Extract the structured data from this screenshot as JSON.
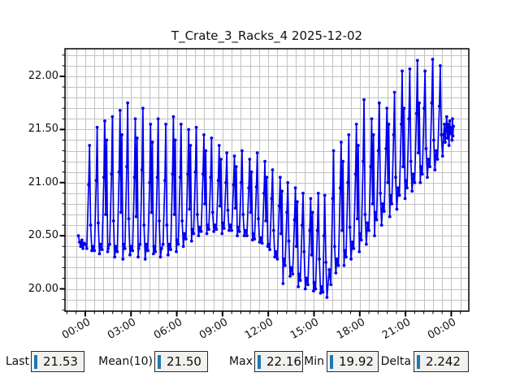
{
  "chart_data": {
    "type": "line",
    "title": "T_Crate_3_Racks_4 2025-12-02",
    "series_name": "T_Crate_3_Racks_4",
    "line_color": "#0000ee",
    "marker": "circle",
    "grid": true,
    "grid_color": "#c2c2c2",
    "frame_color": "#000000",
    "x_unit": "time (hours of 2025-12-02)",
    "xlim": [
      -1.33,
      25.15
    ],
    "ylim": [
      19.79,
      22.26
    ],
    "x_major_ticks": [
      0,
      3,
      6,
      9,
      12,
      15,
      18,
      21,
      24
    ],
    "x_tick_labels": [
      "00:00",
      "03:00",
      "06:00",
      "09:00",
      "12:00",
      "15:00",
      "18:00",
      "21:00",
      "00:00"
    ],
    "x_minor_step": 0.6,
    "y_major_ticks": [
      20.0,
      20.5,
      21.0,
      21.5,
      22.0
    ],
    "y_tick_labels": [
      "20.00",
      "20.50",
      "21.00",
      "21.50",
      "22.00"
    ],
    "y_minor_step": 0.1,
    "points": [
      [
        -0.45,
        20.5
      ],
      [
        -0.38,
        20.44
      ],
      [
        -0.3,
        20.4
      ],
      [
        -0.22,
        20.46
      ],
      [
        -0.15,
        20.38
      ],
      [
        -0.08,
        20.43
      ],
      [
        0.0,
        20.42
      ],
      [
        0.1,
        20.38
      ],
      [
        0.22,
        20.98
      ],
      [
        0.28,
        21.35
      ],
      [
        0.35,
        20.6
      ],
      [
        0.43,
        20.36
      ],
      [
        0.5,
        20.4
      ],
      [
        0.6,
        20.36
      ],
      [
        0.72,
        21.02
      ],
      [
        0.78,
        21.52
      ],
      [
        0.85,
        20.62
      ],
      [
        0.93,
        20.33
      ],
      [
        1.0,
        20.42
      ],
      [
        1.1,
        20.37
      ],
      [
        1.22,
        21.05
      ],
      [
        1.28,
        21.58
      ],
      [
        1.34,
        20.7
      ],
      [
        1.4,
        21.4
      ],
      [
        1.47,
        20.35
      ],
      [
        1.5,
        20.38
      ],
      [
        1.6,
        20.42
      ],
      [
        1.72,
        21.08
      ],
      [
        1.78,
        21.62
      ],
      [
        1.85,
        20.64
      ],
      [
        1.93,
        20.3
      ],
      [
        2.0,
        20.4
      ],
      [
        2.1,
        20.35
      ],
      [
        2.22,
        21.1
      ],
      [
        2.28,
        21.68
      ],
      [
        2.34,
        20.72
      ],
      [
        2.4,
        21.45
      ],
      [
        2.47,
        20.28
      ],
      [
        2.5,
        20.42
      ],
      [
        2.6,
        20.38
      ],
      [
        2.72,
        21.15
      ],
      [
        2.78,
        21.75
      ],
      [
        2.85,
        20.66
      ],
      [
        2.93,
        20.32
      ],
      [
        3.0,
        20.4
      ],
      [
        3.1,
        20.36
      ],
      [
        3.22,
        21.05
      ],
      [
        3.28,
        21.6
      ],
      [
        3.34,
        20.68
      ],
      [
        3.4,
        21.42
      ],
      [
        3.47,
        20.3
      ],
      [
        3.5,
        20.38
      ],
      [
        3.6,
        20.42
      ],
      [
        3.72,
        21.12
      ],
      [
        3.78,
        21.7
      ],
      [
        3.85,
        20.6
      ],
      [
        3.93,
        20.28
      ],
      [
        4.0,
        20.42
      ],
      [
        4.1,
        20.36
      ],
      [
        4.22,
        21.0
      ],
      [
        4.28,
        21.55
      ],
      [
        4.34,
        20.72
      ],
      [
        4.4,
        21.38
      ],
      [
        4.47,
        20.33
      ],
      [
        4.5,
        20.4
      ],
      [
        4.6,
        20.35
      ],
      [
        4.72,
        21.05
      ],
      [
        4.78,
        21.6
      ],
      [
        4.85,
        20.64
      ],
      [
        4.93,
        20.3
      ],
      [
        5.0,
        20.38
      ],
      [
        5.1,
        20.42
      ],
      [
        5.22,
        21.02
      ],
      [
        5.28,
        21.55
      ],
      [
        5.35,
        20.6
      ],
      [
        5.43,
        20.32
      ],
      [
        5.5,
        20.42
      ],
      [
        5.6,
        20.37
      ],
      [
        5.72,
        21.08
      ],
      [
        5.78,
        21.62
      ],
      [
        5.84,
        20.7
      ],
      [
        5.9,
        21.4
      ],
      [
        5.97,
        20.35
      ],
      [
        6.0,
        20.46
      ],
      [
        6.1,
        20.42
      ],
      [
        6.22,
        21.05
      ],
      [
        6.28,
        21.55
      ],
      [
        6.35,
        20.64
      ],
      [
        6.43,
        20.4
      ],
      [
        6.5,
        20.52
      ],
      [
        6.6,
        20.47
      ],
      [
        6.72,
        21.08
      ],
      [
        6.78,
        21.5
      ],
      [
        6.84,
        20.75
      ],
      [
        6.9,
        21.35
      ],
      [
        6.97,
        20.45
      ],
      [
        7.0,
        20.56
      ],
      [
        7.1,
        20.52
      ],
      [
        7.22,
        21.1
      ],
      [
        7.28,
        21.52
      ],
      [
        7.35,
        20.7
      ],
      [
        7.43,
        20.5
      ],
      [
        7.5,
        20.58
      ],
      [
        7.6,
        20.54
      ],
      [
        7.72,
        21.08
      ],
      [
        7.78,
        21.45
      ],
      [
        7.84,
        20.8
      ],
      [
        7.9,
        21.3
      ],
      [
        7.97,
        20.52
      ],
      [
        8.0,
        20.6
      ],
      [
        8.1,
        20.56
      ],
      [
        8.22,
        21.05
      ],
      [
        8.28,
        21.42
      ],
      [
        8.35,
        20.72
      ],
      [
        8.43,
        20.54
      ],
      [
        8.5,
        20.6
      ],
      [
        8.6,
        20.56
      ],
      [
        8.72,
        21.02
      ],
      [
        8.78,
        21.35
      ],
      [
        8.84,
        20.78
      ],
      [
        8.9,
        21.22
      ],
      [
        8.97,
        20.52
      ],
      [
        9.0,
        20.62
      ],
      [
        9.1,
        20.57
      ],
      [
        9.22,
        21.0
      ],
      [
        9.28,
        21.28
      ],
      [
        9.35,
        20.74
      ],
      [
        9.43,
        20.55
      ],
      [
        9.5,
        20.6
      ],
      [
        9.6,
        20.55
      ],
      [
        9.72,
        20.98
      ],
      [
        9.78,
        21.25
      ],
      [
        9.84,
        20.76
      ],
      [
        9.9,
        21.15
      ],
      [
        9.97,
        20.5
      ],
      [
        10.0,
        20.58
      ],
      [
        10.1,
        20.54
      ],
      [
        10.22,
        21.0
      ],
      [
        10.28,
        21.3
      ],
      [
        10.35,
        20.7
      ],
      [
        10.43,
        20.5
      ],
      [
        10.5,
        20.55
      ],
      [
        10.6,
        20.5
      ],
      [
        10.72,
        20.95
      ],
      [
        10.78,
        21.22
      ],
      [
        10.84,
        20.72
      ],
      [
        10.9,
        21.1
      ],
      [
        10.97,
        20.46
      ],
      [
        11.0,
        20.52
      ],
      [
        11.1,
        20.47
      ],
      [
        11.22,
        20.96
      ],
      [
        11.28,
        21.28
      ],
      [
        11.35,
        20.66
      ],
      [
        11.43,
        20.44
      ],
      [
        11.5,
        20.48
      ],
      [
        11.6,
        20.43
      ],
      [
        11.72,
        20.9
      ],
      [
        11.78,
        21.2
      ],
      [
        11.84,
        20.64
      ],
      [
        11.9,
        21.05
      ],
      [
        11.97,
        20.4
      ],
      [
        12.0,
        20.42
      ],
      [
        12.1,
        20.37
      ],
      [
        12.22,
        20.85
      ],
      [
        12.28,
        21.12
      ],
      [
        12.35,
        20.55
      ],
      [
        12.43,
        20.3
      ],
      [
        12.5,
        20.35
      ],
      [
        12.6,
        20.28
      ],
      [
        12.72,
        20.78
      ],
      [
        12.78,
        21.05
      ],
      [
        12.84,
        20.52
      ],
      [
        12.9,
        20.92
      ],
      [
        12.97,
        20.05
      ],
      [
        13.0,
        20.28
      ],
      [
        13.1,
        20.22
      ],
      [
        13.22,
        20.72
      ],
      [
        13.28,
        21.0
      ],
      [
        13.35,
        20.45
      ],
      [
        13.43,
        20.12
      ],
      [
        13.5,
        20.2
      ],
      [
        13.6,
        20.14
      ],
      [
        13.72,
        20.65
      ],
      [
        13.78,
        20.95
      ],
      [
        13.84,
        20.4
      ],
      [
        13.9,
        20.82
      ],
      [
        13.97,
        20.02
      ],
      [
        14.0,
        20.14
      ],
      [
        14.1,
        20.08
      ],
      [
        14.22,
        20.6
      ],
      [
        14.28,
        20.9
      ],
      [
        14.35,
        20.35
      ],
      [
        14.43,
        20.0
      ],
      [
        14.5,
        20.1
      ],
      [
        14.6,
        20.04
      ],
      [
        14.72,
        20.55
      ],
      [
        14.78,
        20.85
      ],
      [
        14.84,
        20.32
      ],
      [
        14.9,
        20.72
      ],
      [
        14.97,
        19.98
      ],
      [
        15.0,
        20.06
      ],
      [
        15.1,
        20.0
      ],
      [
        15.22,
        20.55
      ],
      [
        15.28,
        20.9
      ],
      [
        15.35,
        20.28
      ],
      [
        15.43,
        19.96
      ],
      [
        15.5,
        20.02
      ],
      [
        15.58,
        19.97
      ],
      [
        15.65,
        20.5
      ],
      [
        15.7,
        20.88
      ],
      [
        15.78,
        20.25
      ],
      [
        15.85,
        19.92
      ],
      [
        16.0,
        20.18
      ],
      [
        16.1,
        20.04
      ],
      [
        16.22,
        20.85
      ],
      [
        16.28,
        21.3
      ],
      [
        16.35,
        20.4
      ],
      [
        16.43,
        20.15
      ],
      [
        16.5,
        20.28
      ],
      [
        16.6,
        20.22
      ],
      [
        16.72,
        20.95
      ],
      [
        16.78,
        21.38
      ],
      [
        16.84,
        20.55
      ],
      [
        16.9,
        21.2
      ],
      [
        16.97,
        20.22
      ],
      [
        17.0,
        20.36
      ],
      [
        17.1,
        20.3
      ],
      [
        17.22,
        21.0
      ],
      [
        17.28,
        21.45
      ],
      [
        17.35,
        20.58
      ],
      [
        17.43,
        20.28
      ],
      [
        17.5,
        20.44
      ],
      [
        17.6,
        20.38
      ],
      [
        17.72,
        21.08
      ],
      [
        17.78,
        21.55
      ],
      [
        17.84,
        20.66
      ],
      [
        17.9,
        21.35
      ],
      [
        17.97,
        20.35
      ],
      [
        18.0,
        20.52
      ],
      [
        18.1,
        20.46
      ],
      [
        18.22,
        21.2
      ],
      [
        18.28,
        21.78
      ],
      [
        18.35,
        20.7
      ],
      [
        18.43,
        20.42
      ],
      [
        18.5,
        20.62
      ],
      [
        18.6,
        20.55
      ],
      [
        18.72,
        21.15
      ],
      [
        18.78,
        21.6
      ],
      [
        18.84,
        20.8
      ],
      [
        18.9,
        21.45
      ],
      [
        18.97,
        20.5
      ],
      [
        19.0,
        20.72
      ],
      [
        19.1,
        20.65
      ],
      [
        19.22,
        21.3
      ],
      [
        19.28,
        21.75
      ],
      [
        19.35,
        20.9
      ],
      [
        19.43,
        20.6
      ],
      [
        19.5,
        20.8
      ],
      [
        19.6,
        20.73
      ],
      [
        19.72,
        21.32
      ],
      [
        19.78,
        21.7
      ],
      [
        19.84,
        21.0
      ],
      [
        19.9,
        21.55
      ],
      [
        19.97,
        20.68
      ],
      [
        20.0,
        20.88
      ],
      [
        20.1,
        20.8
      ],
      [
        20.22,
        21.45
      ],
      [
        20.28,
        21.85
      ],
      [
        20.35,
        21.05
      ],
      [
        20.43,
        20.75
      ],
      [
        20.5,
        20.95
      ],
      [
        20.6,
        20.88
      ],
      [
        20.72,
        21.55
      ],
      [
        20.78,
        22.05
      ],
      [
        20.84,
        21.15
      ],
      [
        20.9,
        21.7
      ],
      [
        20.97,
        20.85
      ],
      [
        21.0,
        21.02
      ],
      [
        21.1,
        20.95
      ],
      [
        21.22,
        21.6
      ],
      [
        21.28,
        22.07
      ],
      [
        21.35,
        21.2
      ],
      [
        21.43,
        20.92
      ],
      [
        21.5,
        21.08
      ],
      [
        21.6,
        21.0
      ],
      [
        21.72,
        21.65
      ],
      [
        21.78,
        22.15
      ],
      [
        21.84,
        21.28
      ],
      [
        21.9,
        21.75
      ],
      [
        21.97,
        21.0
      ],
      [
        22.0,
        21.15
      ],
      [
        22.1,
        21.08
      ],
      [
        22.22,
        21.7
      ],
      [
        22.28,
        22.05
      ],
      [
        22.35,
        21.32
      ],
      [
        22.43,
        21.05
      ],
      [
        22.5,
        21.22
      ],
      [
        22.6,
        21.15
      ],
      [
        22.72,
        21.75
      ],
      [
        22.78,
        22.16
      ],
      [
        22.85,
        21.4
      ],
      [
        22.93,
        21.12
      ],
      [
        23.0,
        21.3
      ],
      [
        23.1,
        21.22
      ],
      [
        23.22,
        21.72
      ],
      [
        23.28,
        22.1
      ],
      [
        23.35,
        21.45
      ],
      [
        23.43,
        21.25
      ],
      [
        23.5,
        21.45
      ],
      [
        23.55,
        21.55
      ],
      [
        23.6,
        21.38
      ],
      [
        23.65,
        21.5
      ],
      [
        23.7,
        21.62
      ],
      [
        23.75,
        21.42
      ],
      [
        23.8,
        21.55
      ],
      [
        23.85,
        21.35
      ],
      [
        23.9,
        21.58
      ],
      [
        23.95,
        21.46
      ],
      [
        24.0,
        21.52
      ],
      [
        24.05,
        21.4
      ],
      [
        24.08,
        21.6
      ],
      [
        24.11,
        21.44
      ],
      [
        24.14,
        21.53
      ]
    ]
  },
  "stats": {
    "cursor_color": "#1f77b4",
    "fields": [
      {
        "label": "Last",
        "value": "21.53"
      },
      {
        "label": "Mean(10)",
        "value": "21.50"
      },
      {
        "label": "Max",
        "value": "22.16"
      },
      {
        "label": "Min",
        "value": "19.92"
      },
      {
        "label": "Delta",
        "value": "2.242"
      }
    ]
  }
}
